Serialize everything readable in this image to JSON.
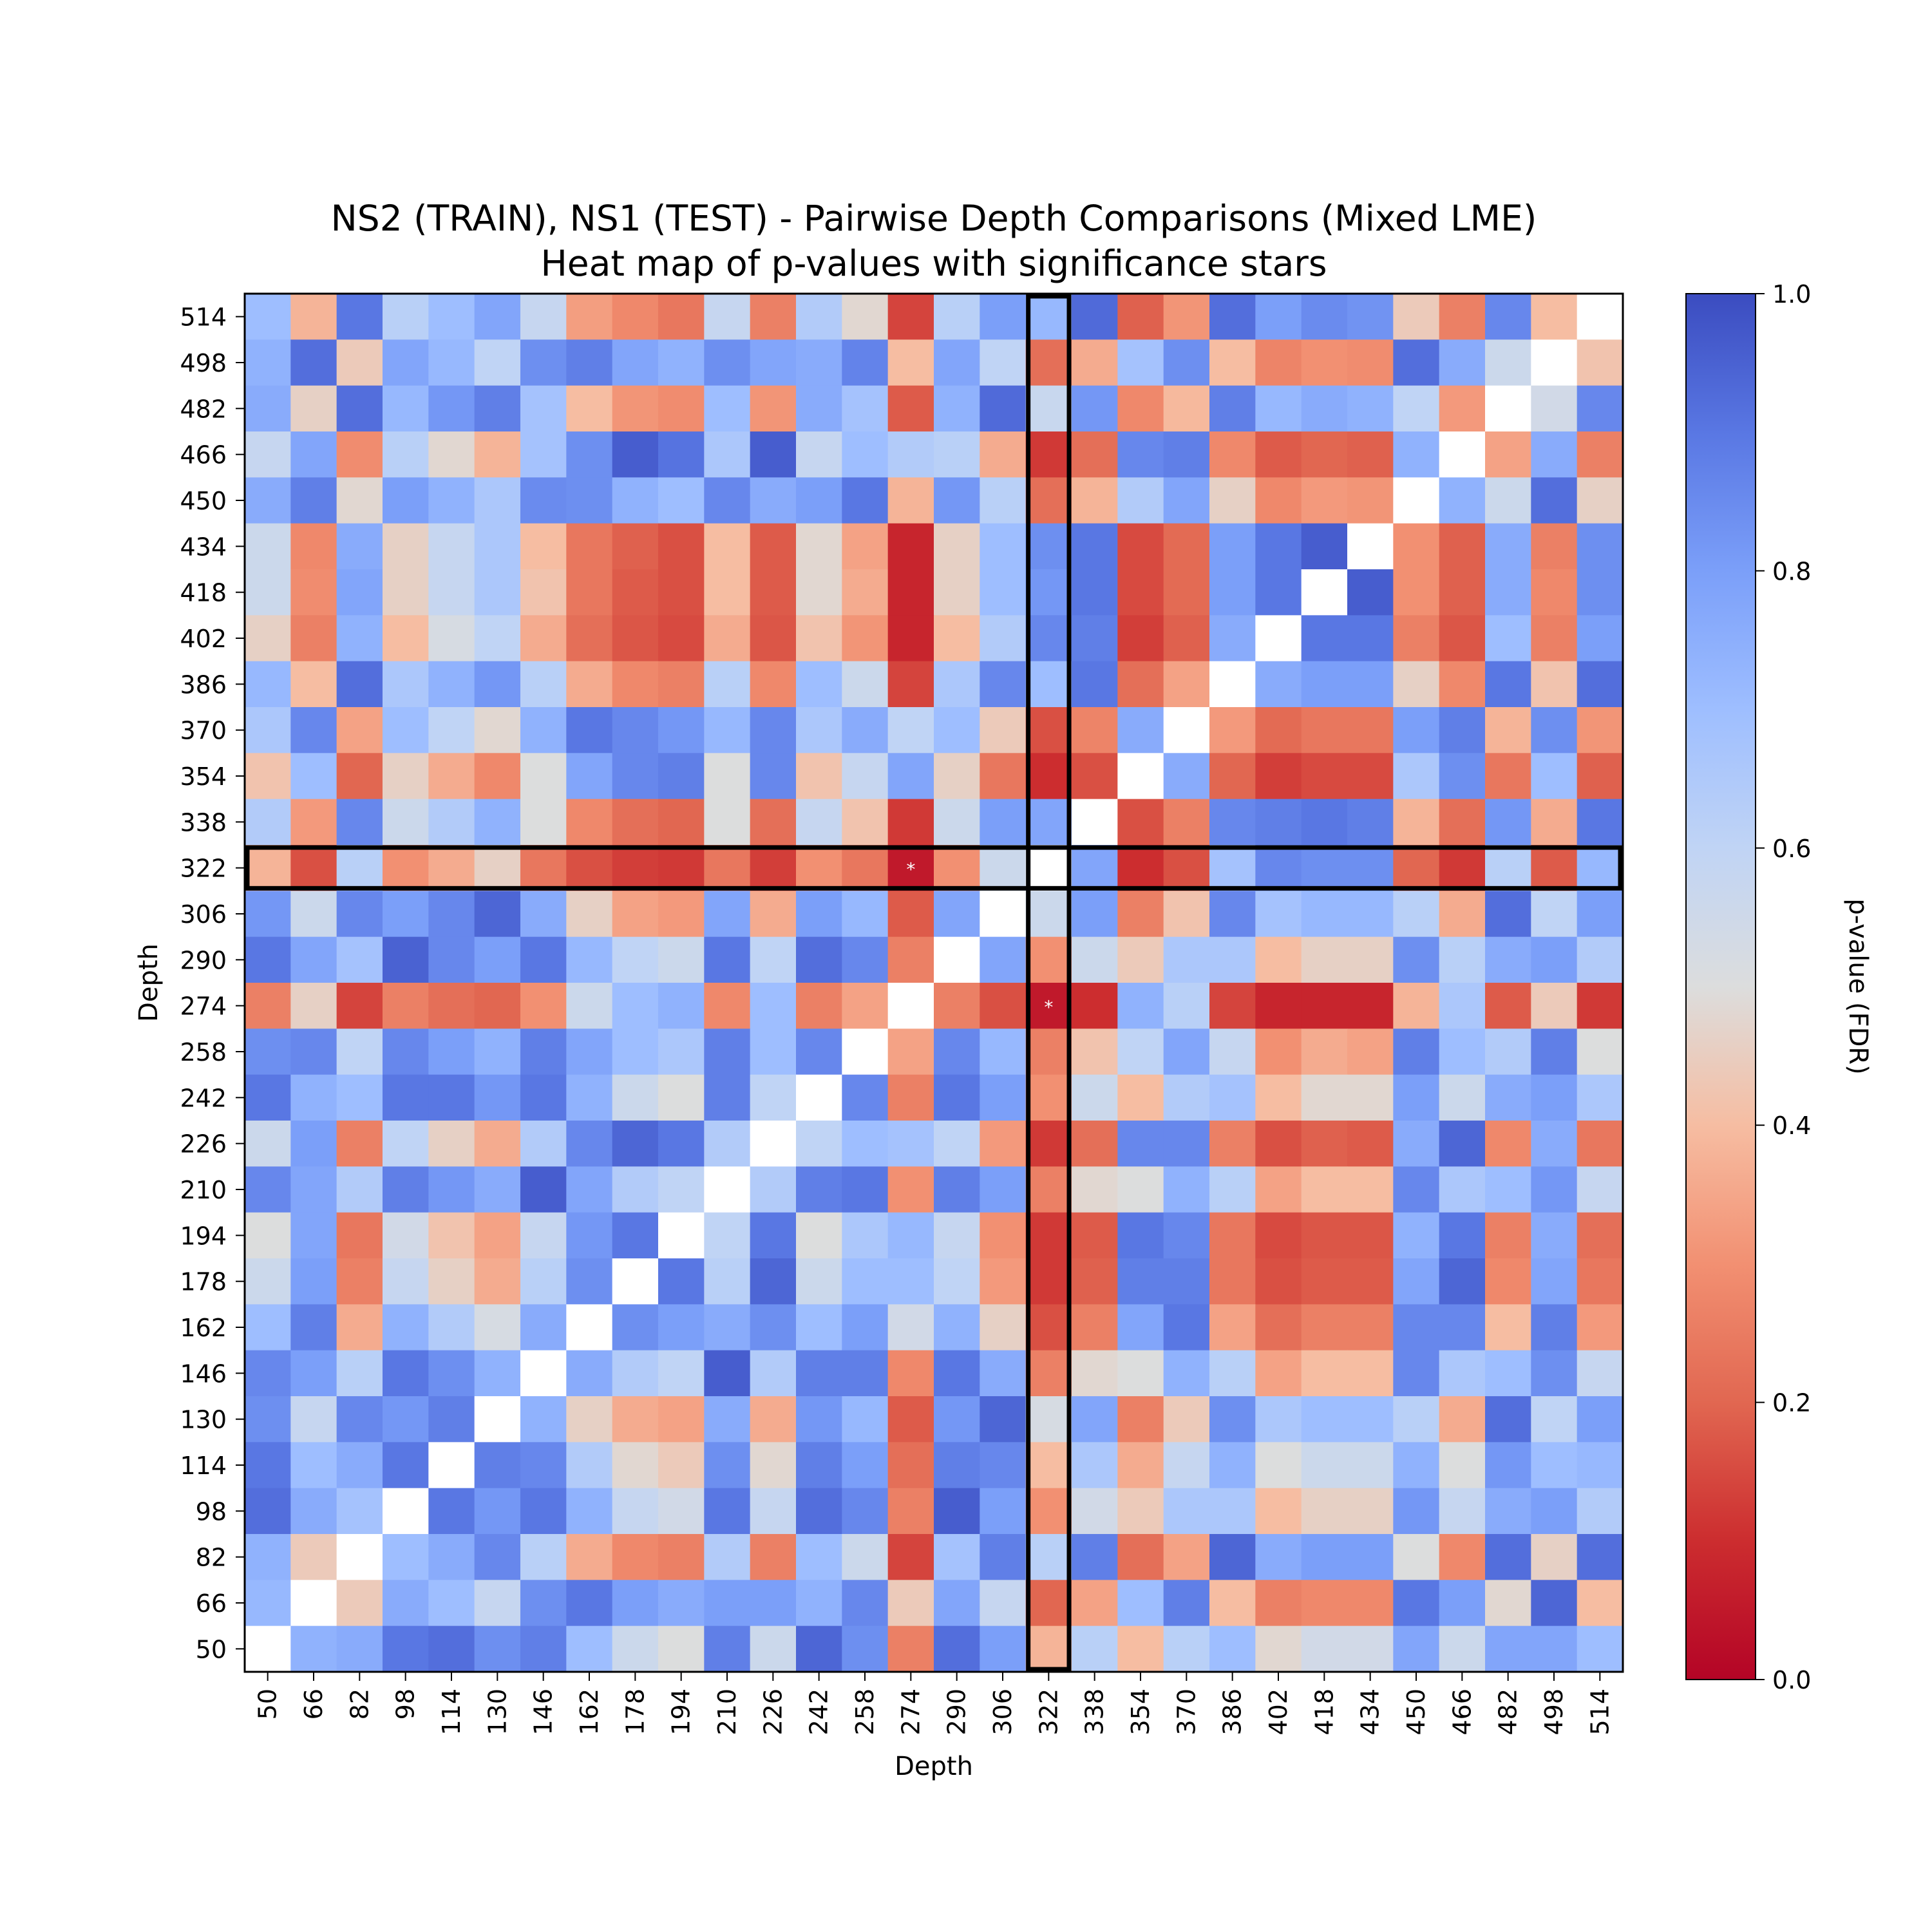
{
  "chart_data": {
    "type": "heatmap",
    "title": "NS2 (TRAIN), NS1 (TEST) - Pairwise Depth Comparisons (Mixed LME)",
    "subtitle": "Heat map of p-values with significance stars",
    "xlabel": "Depth",
    "ylabel": "Depth",
    "colorbar_label": "p-value (FDR)",
    "colorscale": "coolwarm_r",
    "vmin": 0.0,
    "vmax": 1.0,
    "colorbar_ticks": [
      "0.0",
      "0.2",
      "0.4",
      "0.6",
      "0.8",
      "1.0"
    ],
    "categories": [
      "50",
      "66",
      "82",
      "98",
      "114",
      "130",
      "146",
      "162",
      "178",
      "194",
      "210",
      "226",
      "242",
      "258",
      "274",
      "290",
      "306",
      "322",
      "338",
      "354",
      "370",
      "386",
      "402",
      "418",
      "434",
      "450",
      "466",
      "482",
      "498",
      "514"
    ],
    "highlighted_depth": "322",
    "significant_cells": [
      [
        "274",
        "322"
      ],
      [
        "322",
        "274"
      ]
    ],
    "star_symbol": "*",
    "rows": [
      {
        "y": "514",
        "p": [
          0.7,
          0.38,
          0.9,
          0.62,
          0.7,
          0.78,
          0.58,
          0.33,
          0.28,
          0.24,
          0.58,
          0.26,
          0.64,
          0.48,
          0.14,
          0.62,
          0.8,
          0.72,
          0.93,
          0.19,
          0.31,
          0.92,
          0.8,
          0.85,
          0.83,
          0.44,
          0.26,
          0.86,
          0.4,
          1.0
        ]
      },
      {
        "y": "498",
        "p": [
          0.74,
          0.92,
          0.44,
          0.78,
          0.72,
          0.6,
          0.84,
          0.88,
          0.78,
          0.74,
          0.84,
          0.78,
          0.76,
          0.87,
          0.4,
          0.78,
          0.6,
          0.22,
          0.36,
          0.68,
          0.84,
          0.4,
          0.27,
          0.3,
          0.29,
          0.92,
          0.76,
          0.56,
          1.0,
          0.42
        ]
      },
      {
        "y": "482",
        "p": [
          0.76,
          0.46,
          0.92,
          0.72,
          0.82,
          0.88,
          0.68,
          0.4,
          0.31,
          0.29,
          0.7,
          0.31,
          0.76,
          0.68,
          0.18,
          0.74,
          0.93,
          0.57,
          0.82,
          0.28,
          0.39,
          0.88,
          0.72,
          0.76,
          0.74,
          0.6,
          0.32,
          1.0,
          0.54,
          0.86
        ]
      },
      {
        "y": "466",
        "p": [
          0.58,
          0.78,
          0.29,
          0.62,
          0.48,
          0.38,
          0.68,
          0.84,
          0.96,
          0.91,
          0.66,
          0.96,
          0.58,
          0.7,
          0.64,
          0.62,
          0.36,
          0.12,
          0.22,
          0.86,
          0.88,
          0.28,
          0.18,
          0.2,
          0.19,
          0.74,
          1.0,
          0.34,
          0.76,
          0.26
        ]
      },
      {
        "y": "450",
        "p": [
          0.76,
          0.88,
          0.48,
          0.8,
          0.74,
          0.66,
          0.85,
          0.84,
          0.74,
          0.7,
          0.86,
          0.76,
          0.8,
          0.9,
          0.38,
          0.82,
          0.62,
          0.22,
          0.38,
          0.64,
          0.78,
          0.46,
          0.28,
          0.32,
          0.31,
          1.0,
          0.74,
          0.56,
          0.92,
          0.46
        ]
      },
      {
        "y": "434",
        "p": [
          0.56,
          0.28,
          0.76,
          0.46,
          0.58,
          0.66,
          0.4,
          0.24,
          0.19,
          0.16,
          0.4,
          0.18,
          0.48,
          0.34,
          0.08,
          0.46,
          0.7,
          0.84,
          0.9,
          0.15,
          0.21,
          0.8,
          0.9,
          0.96,
          1.0,
          0.3,
          0.19,
          0.76,
          0.26,
          0.84
        ]
      },
      {
        "y": "418",
        "p": [
          0.56,
          0.29,
          0.78,
          0.46,
          0.58,
          0.66,
          0.42,
          0.24,
          0.18,
          0.16,
          0.4,
          0.18,
          0.48,
          0.36,
          0.08,
          0.46,
          0.7,
          0.82,
          0.9,
          0.15,
          0.21,
          0.8,
          0.9,
          1.0,
          0.96,
          0.3,
          0.19,
          0.76,
          0.28,
          0.84
        ]
      },
      {
        "y": "402",
        "p": [
          0.46,
          0.26,
          0.74,
          0.4,
          0.52,
          0.6,
          0.36,
          0.22,
          0.17,
          0.15,
          0.36,
          0.17,
          0.42,
          0.31,
          0.08,
          0.4,
          0.64,
          0.86,
          0.88,
          0.13,
          0.19,
          0.76,
          1.0,
          0.9,
          0.9,
          0.26,
          0.17,
          0.7,
          0.26,
          0.8
        ]
      },
      {
        "y": "386",
        "p": [
          0.72,
          0.4,
          0.92,
          0.66,
          0.74,
          0.82,
          0.62,
          0.36,
          0.28,
          0.26,
          0.62,
          0.28,
          0.7,
          0.56,
          0.14,
          0.66,
          0.86,
          0.7,
          0.9,
          0.22,
          0.34,
          1.0,
          0.76,
          0.8,
          0.8,
          0.46,
          0.28,
          0.9,
          0.42,
          0.92
        ]
      },
      {
        "y": "370",
        "p": [
          0.66,
          0.86,
          0.34,
          0.7,
          0.6,
          0.48,
          0.74,
          0.9,
          0.86,
          0.82,
          0.72,
          0.86,
          0.66,
          0.76,
          0.6,
          0.7,
          0.44,
          0.16,
          0.27,
          0.76,
          1.0,
          0.32,
          0.21,
          0.24,
          0.24,
          0.8,
          0.88,
          0.38,
          0.84,
          0.31
        ]
      },
      {
        "y": "354",
        "p": [
          0.42,
          0.7,
          0.2,
          0.46,
          0.36,
          0.28,
          0.5,
          0.78,
          0.86,
          0.88,
          0.5,
          0.86,
          0.42,
          0.58,
          0.78,
          0.46,
          0.24,
          0.1,
          0.16,
          1.0,
          0.76,
          0.2,
          0.13,
          0.15,
          0.15,
          0.66,
          0.84,
          0.24,
          0.7,
          0.19
        ]
      },
      {
        "y": "338",
        "p": [
          0.64,
          0.32,
          0.86,
          0.56,
          0.64,
          0.74,
          0.5,
          0.28,
          0.22,
          0.2,
          0.5,
          0.22,
          0.58,
          0.42,
          0.12,
          0.56,
          0.8,
          0.78,
          1.0,
          0.16,
          0.26,
          0.86,
          0.88,
          0.9,
          0.88,
          0.38,
          0.22,
          0.82,
          0.36,
          0.9
        ]
      },
      {
        "y": "322",
        "p": [
          0.38,
          0.16,
          0.62,
          0.3,
          0.36,
          0.46,
          0.24,
          0.16,
          0.13,
          0.12,
          0.24,
          0.13,
          0.3,
          0.24,
          0.05,
          0.3,
          0.56,
          1.0,
          0.78,
          0.1,
          0.16,
          0.68,
          0.86,
          0.84,
          0.84,
          0.2,
          0.12,
          0.62,
          0.18,
          0.72
        ]
      },
      {
        "y": "306",
        "p": [
          0.82,
          0.56,
          0.86,
          0.8,
          0.86,
          0.94,
          0.76,
          0.46,
          0.34,
          0.32,
          0.78,
          0.36,
          0.8,
          0.72,
          0.18,
          0.78,
          1.0,
          0.56,
          0.8,
          0.26,
          0.42,
          0.86,
          0.68,
          0.72,
          0.72,
          0.62,
          0.36,
          0.92,
          0.6,
          0.8
        ]
      },
      {
        "y": "290",
        "p": [
          0.9,
          0.78,
          0.68,
          0.95,
          0.86,
          0.8,
          0.9,
          0.72,
          0.6,
          0.56,
          0.9,
          0.6,
          0.92,
          0.86,
          0.26,
          1.0,
          0.78,
          0.3,
          0.56,
          0.44,
          0.66,
          0.66,
          0.4,
          0.46,
          0.46,
          0.84,
          0.62,
          0.76,
          0.8,
          0.64
        ]
      },
      {
        "y": "274",
        "p": [
          0.26,
          0.46,
          0.14,
          0.26,
          0.22,
          0.2,
          0.3,
          0.56,
          0.7,
          0.74,
          0.28,
          0.7,
          0.26,
          0.34,
          1.0,
          0.26,
          0.16,
          0.05,
          0.1,
          0.74,
          0.62,
          0.14,
          0.08,
          0.08,
          0.08,
          0.38,
          0.66,
          0.18,
          0.44,
          0.12
        ]
      },
      {
        "y": "258",
        "p": [
          0.84,
          0.86,
          0.6,
          0.86,
          0.8,
          0.74,
          0.88,
          0.78,
          0.7,
          0.66,
          0.88,
          0.7,
          0.86,
          1.0,
          0.34,
          0.86,
          0.72,
          0.26,
          0.42,
          0.6,
          0.78,
          0.58,
          0.3,
          0.36,
          0.34,
          0.88,
          0.7,
          0.64,
          0.88,
          0.5
        ]
      },
      {
        "y": "242",
        "p": [
          0.9,
          0.74,
          0.7,
          0.9,
          0.9,
          0.82,
          0.9,
          0.74,
          0.56,
          0.5,
          0.88,
          0.6,
          1.0,
          0.86,
          0.26,
          0.9,
          0.8,
          0.3,
          0.56,
          0.4,
          0.64,
          0.68,
          0.4,
          0.48,
          0.48,
          0.8,
          0.56,
          0.76,
          0.8,
          0.66
        ]
      },
      {
        "y": "226",
        "p": [
          0.56,
          0.8,
          0.26,
          0.6,
          0.46,
          0.36,
          0.64,
          0.86,
          0.94,
          0.9,
          0.64,
          1.0,
          0.6,
          0.7,
          0.68,
          0.6,
          0.32,
          0.12,
          0.22,
          0.86,
          0.86,
          0.26,
          0.16,
          0.19,
          0.18,
          0.76,
          0.94,
          0.28,
          0.76,
          0.24
        ]
      },
      {
        "y": "210",
        "p": [
          0.86,
          0.78,
          0.64,
          0.88,
          0.82,
          0.76,
          0.96,
          0.78,
          0.64,
          0.6,
          1.0,
          0.64,
          0.88,
          0.9,
          0.3,
          0.88,
          0.8,
          0.26,
          0.48,
          0.5,
          0.74,
          0.62,
          0.34,
          0.4,
          0.4,
          0.86,
          0.66,
          0.7,
          0.82,
          0.58
        ]
      },
      {
        "y": "194",
        "p": [
          0.5,
          0.78,
          0.24,
          0.54,
          0.42,
          0.34,
          0.58,
          0.82,
          0.9,
          1.0,
          0.6,
          0.9,
          0.5,
          0.66,
          0.72,
          0.58,
          0.3,
          0.12,
          0.18,
          0.9,
          0.86,
          0.24,
          0.15,
          0.17,
          0.17,
          0.74,
          0.9,
          0.26,
          0.76,
          0.22
        ]
      },
      {
        "y": "178",
        "p": [
          0.56,
          0.8,
          0.26,
          0.58,
          0.46,
          0.36,
          0.62,
          0.84,
          1.0,
          0.9,
          0.62,
          0.94,
          0.56,
          0.7,
          0.7,
          0.6,
          0.32,
          0.12,
          0.19,
          0.88,
          0.88,
          0.24,
          0.16,
          0.18,
          0.18,
          0.78,
          0.94,
          0.28,
          0.78,
          0.24
        ]
      },
      {
        "y": "162",
        "p": [
          0.7,
          0.88,
          0.36,
          0.74,
          0.64,
          0.52,
          0.76,
          1.0,
          0.84,
          0.8,
          0.76,
          0.84,
          0.7,
          0.8,
          0.54,
          0.74,
          0.46,
          0.16,
          0.26,
          0.78,
          0.9,
          0.34,
          0.22,
          0.26,
          0.26,
          0.86,
          0.86,
          0.4,
          0.88,
          0.32
        ]
      },
      {
        "y": "146",
        "p": [
          0.86,
          0.8,
          0.62,
          0.9,
          0.84,
          0.74,
          1.0,
          0.76,
          0.64,
          0.6,
          0.96,
          0.64,
          0.88,
          0.88,
          0.28,
          0.9,
          0.76,
          0.26,
          0.48,
          0.5,
          0.74,
          0.62,
          0.34,
          0.4,
          0.4,
          0.86,
          0.66,
          0.7,
          0.84,
          0.58
        ]
      },
      {
        "y": "130",
        "p": [
          0.84,
          0.58,
          0.86,
          0.82,
          0.88,
          1.0,
          0.74,
          0.46,
          0.36,
          0.34,
          0.76,
          0.36,
          0.82,
          0.72,
          0.18,
          0.82,
          0.94,
          0.52,
          0.78,
          0.26,
          0.44,
          0.84,
          0.66,
          0.7,
          0.7,
          0.62,
          0.36,
          0.92,
          0.6,
          0.8
        ]
      },
      {
        "y": "114",
        "p": [
          0.9,
          0.7,
          0.76,
          0.9,
          1.0,
          0.88,
          0.86,
          0.64,
          0.48,
          0.44,
          0.84,
          0.48,
          0.88,
          0.8,
          0.22,
          0.88,
          0.86,
          0.4,
          0.66,
          0.36,
          0.58,
          0.74,
          0.5,
          0.56,
          0.56,
          0.74,
          0.5,
          0.82,
          0.7,
          0.72
        ]
      },
      {
        "y": "98",
        "p": [
          0.92,
          0.76,
          0.68,
          1.0,
          0.9,
          0.82,
          0.9,
          0.74,
          0.58,
          0.54,
          0.9,
          0.58,
          0.92,
          0.86,
          0.26,
          0.96,
          0.8,
          0.3,
          0.54,
          0.44,
          0.66,
          0.66,
          0.4,
          0.46,
          0.46,
          0.82,
          0.58,
          0.76,
          0.8,
          0.64
        ]
      },
      {
        "y": "82",
        "p": [
          0.74,
          0.44,
          1.0,
          0.7,
          0.76,
          0.86,
          0.62,
          0.36,
          0.28,
          0.26,
          0.64,
          0.26,
          0.7,
          0.56,
          0.14,
          0.68,
          0.88,
          0.62,
          0.88,
          0.22,
          0.34,
          0.94,
          0.76,
          0.8,
          0.8,
          0.5,
          0.28,
          0.92,
          0.46,
          0.92
        ]
      },
      {
        "y": "66",
        "p": [
          0.72,
          1.0,
          0.44,
          0.76,
          0.7,
          0.58,
          0.84,
          0.9,
          0.8,
          0.76,
          0.8,
          0.8,
          0.74,
          0.86,
          0.44,
          0.78,
          0.58,
          0.2,
          0.34,
          0.7,
          0.88,
          0.4,
          0.26,
          0.28,
          0.28,
          0.9,
          0.8,
          0.48,
          0.94,
          0.4
        ]
      },
      {
        "y": "50",
        "p": [
          1.0,
          0.74,
          0.76,
          0.9,
          0.92,
          0.84,
          0.88,
          0.7,
          0.56,
          0.5,
          0.88,
          0.56,
          0.94,
          0.84,
          0.26,
          0.92,
          0.8,
          0.38,
          0.62,
          0.4,
          0.62,
          0.7,
          0.48,
          0.54,
          0.54,
          0.78,
          0.56,
          0.78,
          0.78,
          0.7
        ]
      }
    ]
  }
}
